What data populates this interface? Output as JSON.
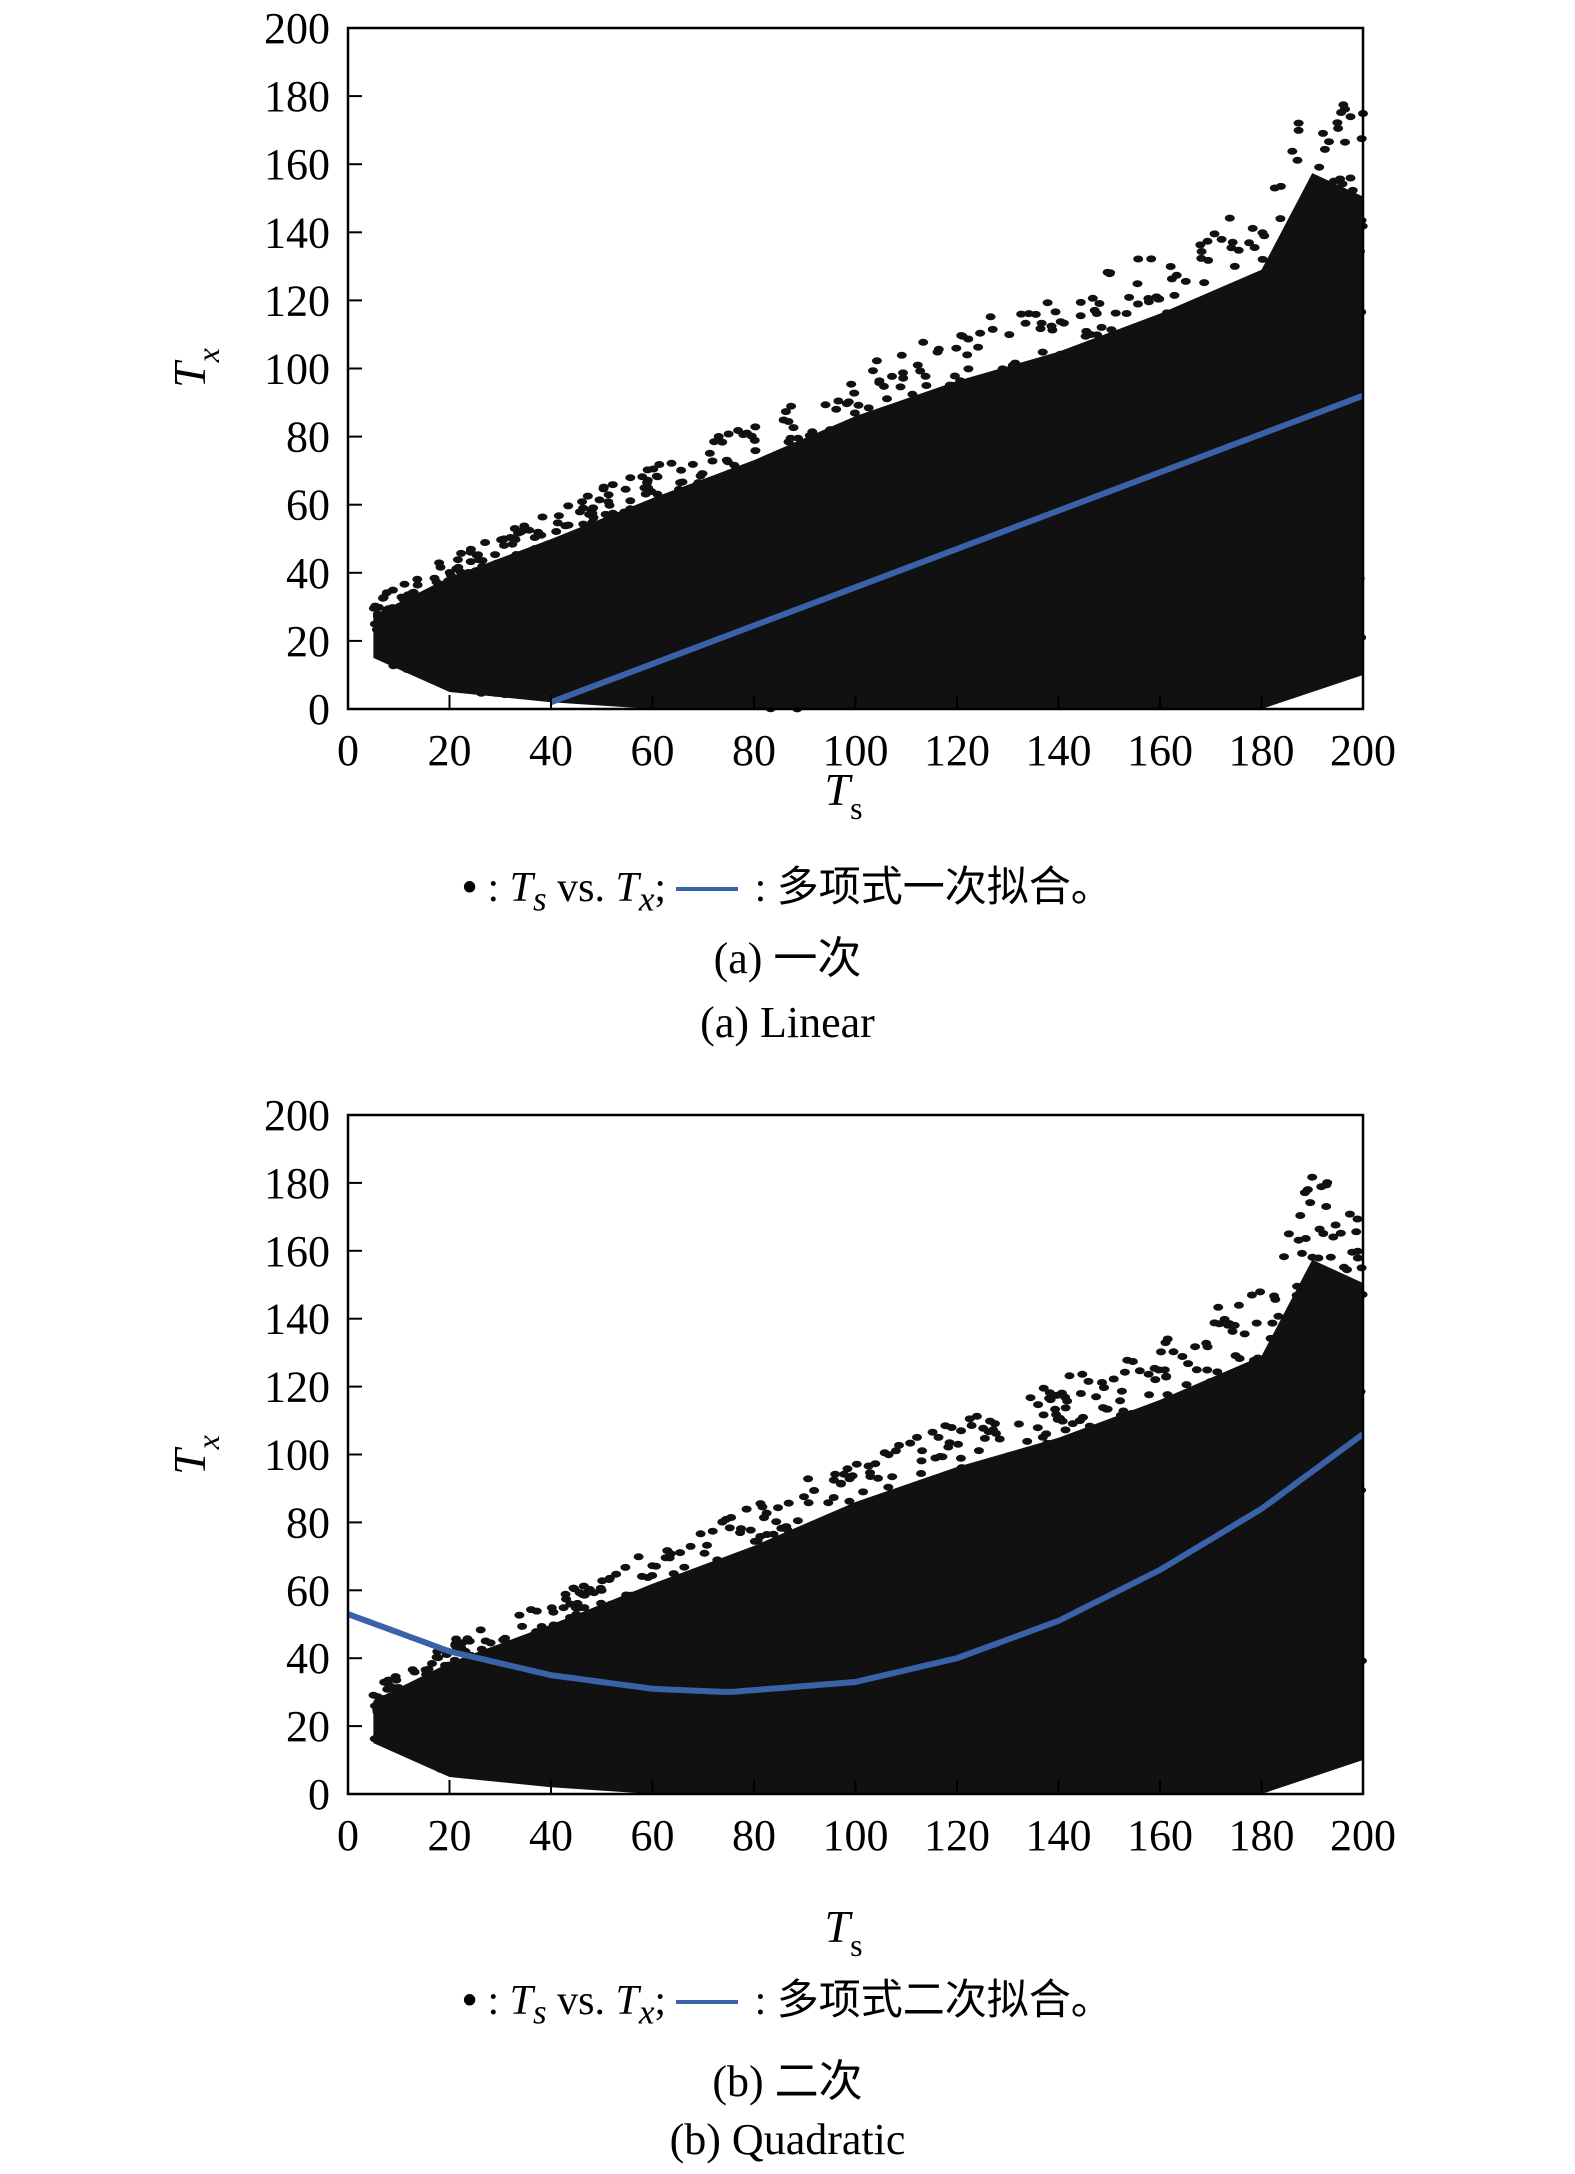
{
  "chart_data": [
    {
      "type": "scatter",
      "caption_cn": "(a) 一次",
      "caption_en": "(a) Linear",
      "xlabel": "T",
      "xlabel_sub": "s",
      "ylabel": "T",
      "ylabel_sub": "x",
      "xlim": [
        0,
        200
      ],
      "ylim": [
        0,
        200
      ],
      "xticks": [
        "0",
        "20",
        "40",
        "60",
        "80",
        "100",
        "120",
        "140",
        "160",
        "180",
        "200"
      ],
      "yticks": [
        "0",
        "20",
        "40",
        "60",
        "80",
        "100",
        "120",
        "140",
        "160",
        "180",
        "200"
      ],
      "legend": {
        "dot_symbol": "•",
        "sep": " : ",
        "scatter_T1": "T",
        "scatter_s1": "s",
        "scatter_vs": " vs. ",
        "scatter_T2": "T",
        "scatter_s2": "x",
        "semicolon": ";",
        "fit_label": " : 多项式一次拟合。"
      },
      "colors": {
        "points": "#111111",
        "fit": "#3a62a8"
      },
      "fit": {
        "degree": 1,
        "x": [
          40,
          200
        ],
        "y": [
          2,
          92
        ]
      },
      "point_band": {
        "x": [
          5,
          20,
          40,
          60,
          80,
          100,
          120,
          140,
          160,
          180,
          190,
          200
        ],
        "y_max": [
          32,
          45,
          58,
          72,
          85,
          100,
          112,
          122,
          135,
          150,
          183,
          175
        ],
        "y_min": [
          15,
          5,
          2,
          0,
          0,
          0,
          0,
          0,
          0,
          0,
          5,
          10
        ]
      }
    },
    {
      "type": "scatter",
      "caption_cn": "(b) 二次",
      "caption_en": "(b) Quadratic",
      "xlabel": "T",
      "xlabel_sub": "s",
      "ylabel": "T",
      "ylabel_sub": "x",
      "xlim": [
        0,
        200
      ],
      "ylim": [
        0,
        200
      ],
      "xticks": [
        "0",
        "20",
        "40",
        "60",
        "80",
        "100",
        "120",
        "140",
        "160",
        "180",
        "200"
      ],
      "yticks": [
        "0",
        "20",
        "40",
        "60",
        "80",
        "100",
        "120",
        "140",
        "160",
        "180",
        "200"
      ],
      "legend": {
        "dot_symbol": "•",
        "sep": " : ",
        "scatter_T1": "T",
        "scatter_s1": "s",
        "scatter_vs": " vs. ",
        "scatter_T2": "T",
        "scatter_s2": "x",
        "semicolon": ";",
        "fit_label": " : 多项式二次拟合。"
      },
      "colors": {
        "points": "#111111",
        "fit": "#3a62a8"
      },
      "fit": {
        "degree": 2,
        "x": [
          0,
          20,
          40,
          60,
          75,
          100,
          120,
          140,
          160,
          180,
          200
        ],
        "y": [
          53,
          42,
          35,
          31,
          30,
          33,
          40,
          51,
          66,
          84,
          106
        ]
      },
      "point_band": {
        "x": [
          5,
          20,
          40,
          60,
          80,
          100,
          120,
          140,
          160,
          180,
          190,
          200
        ],
        "y_max": [
          32,
          45,
          58,
          72,
          85,
          100,
          112,
          122,
          135,
          150,
          183,
          175
        ],
        "y_min": [
          15,
          5,
          2,
          0,
          0,
          0,
          0,
          0,
          0,
          0,
          5,
          10
        ]
      }
    }
  ]
}
